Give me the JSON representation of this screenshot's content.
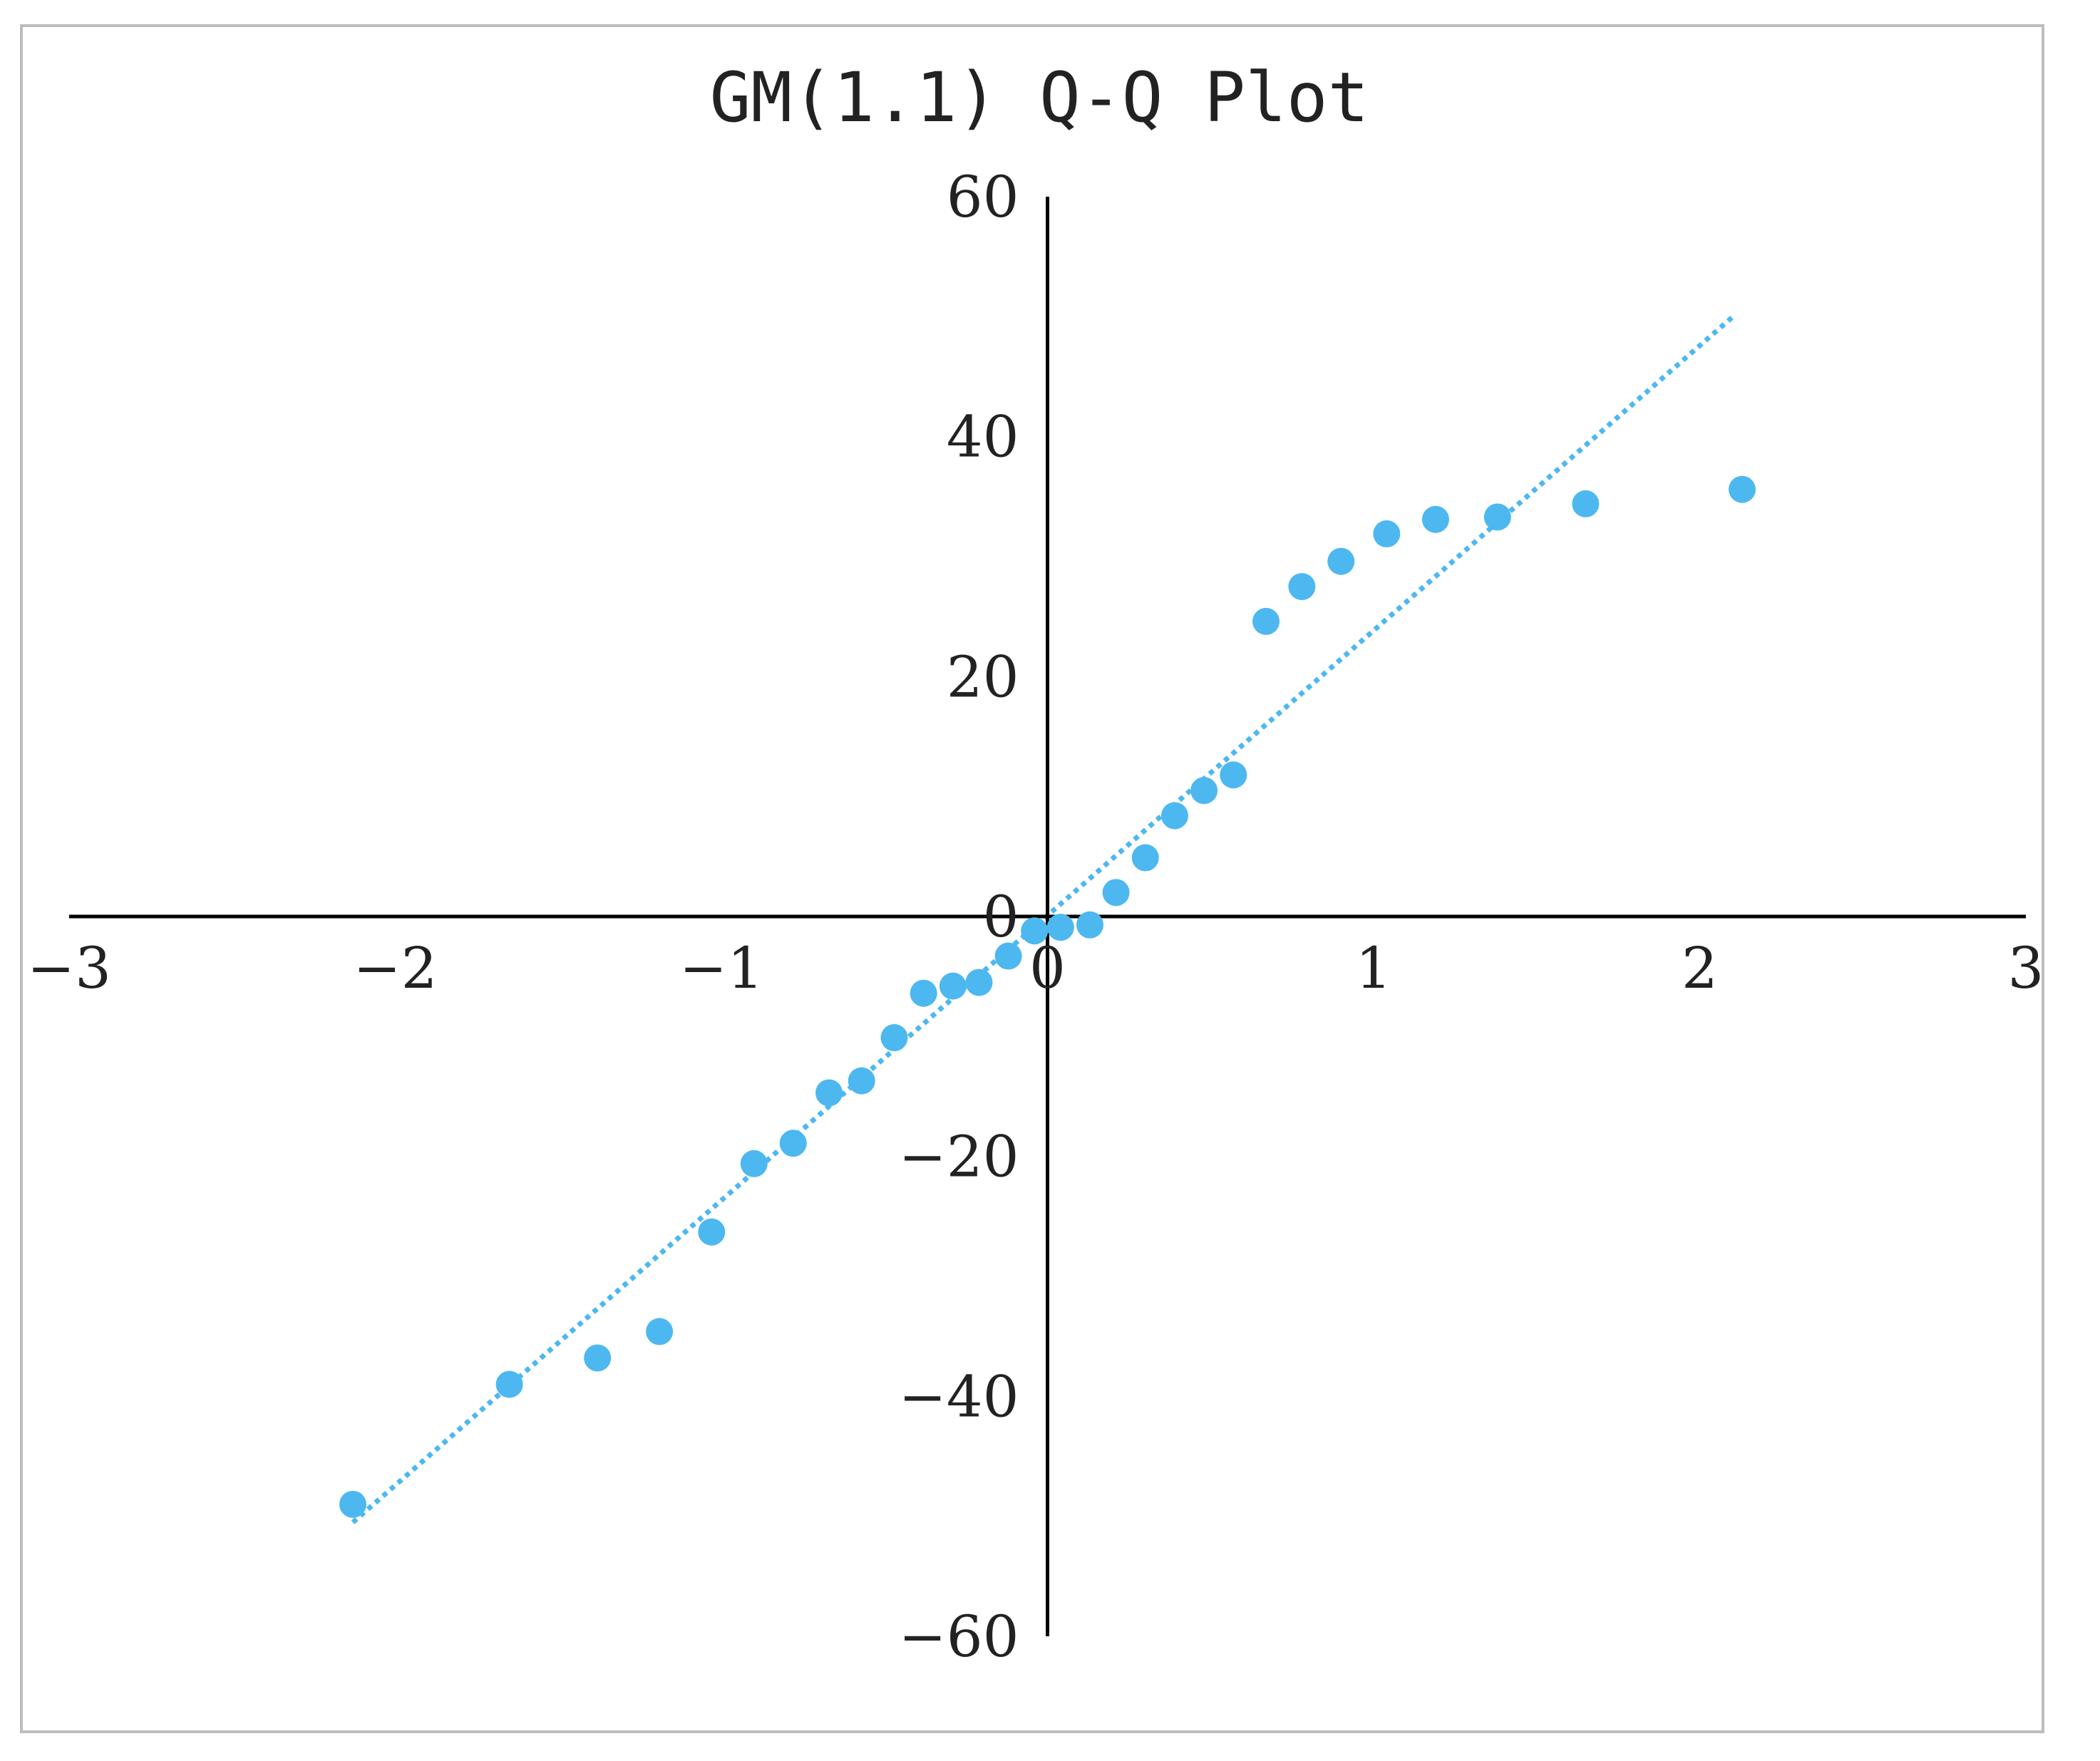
{
  "chart_data": {
    "type": "scatter",
    "title": "GM(1.1) Q-Q Plot",
    "xlabel": "",
    "ylabel": "",
    "xlim": [
      -3,
      3
    ],
    "ylim": [
      -60,
      60
    ],
    "x_ticks": [
      -3,
      -2,
      -1,
      0,
      1,
      2,
      3
    ],
    "y_ticks": [
      -60,
      -40,
      -20,
      0,
      20,
      40,
      60
    ],
    "x_tick_labels": [
      "−3",
      "−2",
      "−1",
      "0",
      "1",
      "2",
      "3"
    ],
    "y_tick_labels": [
      "−60",
      "−40",
      "−20",
      "0",
      "20",
      "40",
      "60"
    ],
    "grid": false,
    "legend": "none",
    "series": [
      {
        "type": "scatter",
        "color": "#4db8f0",
        "points": [
          [
            -2.13,
            -49.0
          ],
          [
            -1.65,
            -39.0
          ],
          [
            -1.38,
            -36.8
          ],
          [
            -1.19,
            -34.6
          ],
          [
            -1.03,
            -26.3
          ],
          [
            -0.9,
            -20.6
          ],
          [
            -0.78,
            -18.9
          ],
          [
            -0.67,
            -14.7
          ],
          [
            -0.57,
            -13.7
          ],
          [
            -0.47,
            -10.1
          ],
          [
            -0.38,
            -6.4
          ],
          [
            -0.29,
            -5.8
          ],
          [
            -0.21,
            -5.5
          ],
          [
            -0.12,
            -3.3
          ],
          [
            -0.04,
            -1.2
          ],
          [
            0.04,
            -0.9
          ],
          [
            0.13,
            -0.7
          ],
          [
            0.21,
            2.0
          ],
          [
            0.3,
            4.9
          ],
          [
            0.39,
            8.4
          ],
          [
            0.48,
            10.5
          ],
          [
            0.57,
            11.8
          ],
          [
            0.67,
            24.6
          ],
          [
            0.78,
            27.5
          ],
          [
            0.9,
            29.6
          ],
          [
            1.04,
            31.9
          ],
          [
            1.19,
            33.1
          ],
          [
            1.38,
            33.3
          ],
          [
            1.65,
            34.4
          ],
          [
            2.13,
            35.6
          ]
        ]
      },
      {
        "type": "trendline",
        "style": "dotted",
        "color": "#4db8f0",
        "points": [
          [
            -2.13,
            -50.5
          ],
          [
            2.11,
            50.2
          ]
        ]
      }
    ]
  }
}
